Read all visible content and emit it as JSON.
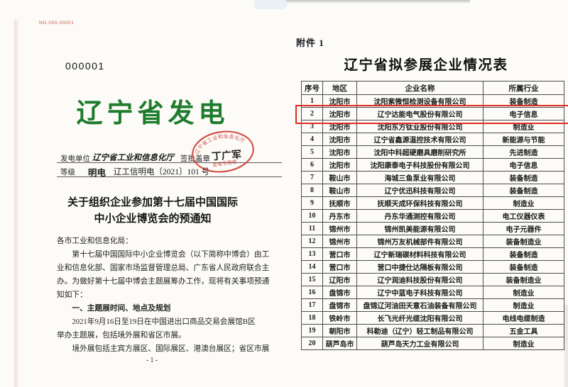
{
  "left_page": {
    "doc_no_red": "NO.000.00001",
    "serial": "000001",
    "big_title": "辽宁省发电",
    "form": {
      "unit_label": "发电单位",
      "unit_value": "辽宁省工业和信息化厅",
      "sign_label": "签批盖章",
      "sign_value": "丁广军",
      "grade_label": "等级",
      "grade_value": "明电",
      "doc_number": "辽工信明电〔2021〕101 号"
    },
    "stamp": {
      "ring_text": "辽宁省工业和信息化厅",
      "bottom_text": "发电专用章",
      "color": "#cc3b30"
    },
    "subject_line1": "关于组织企业参加第十七届中国国际",
    "subject_line2": "中小企业博览会的预通知",
    "body_lines": [
      {
        "text": "各市工业和信息化局：",
        "indent": false,
        "bold": false
      },
      {
        "text": "第十七届中国国际中小企业博览会（以下简称中博会）由工",
        "indent": true,
        "bold": false
      },
      {
        "text": "业和信息化部、国家市场监督管理总局、广东省人民政府联合主",
        "indent": false,
        "bold": false
      },
      {
        "text": "办。为做好第十七届中博会主题展筹办工作，现将有关事项预通",
        "indent": false,
        "bold": false
      },
      {
        "text": "知如下：",
        "indent": false,
        "bold": false
      },
      {
        "text": "一、主题展时间、地点及规划",
        "indent": true,
        "bold": true
      },
      {
        "text": "2021年9月16日至19日在中国进出口商品交易会展馆B区",
        "indent": true,
        "bold": false
      },
      {
        "text": "举办主题展，包括境外展和省区市展。",
        "indent": false,
        "bold": false
      },
      {
        "text": "境外展包括主宾方展区、国际展区、港澳台展区；省区市展",
        "indent": true,
        "bold": false
      }
    ],
    "page_number": "-1-"
  },
  "right_page": {
    "attachment_label": "附件 1",
    "table_title": "辽宁省拟参展企业情况表",
    "columns": [
      "序号",
      "地区",
      "企业名称",
      "所属行业"
    ],
    "rows": [
      [
        "1",
        "沈阳市",
        "沈阳紫微恒检测设备有限公司",
        "装备制造"
      ],
      [
        "2",
        "沈阳市",
        "辽宁达能电气股份有限公司",
        "电子信息"
      ],
      [
        "3",
        "沈阳市",
        "沈阳东方钛业股份有限公司",
        "制造业"
      ],
      [
        "4",
        "沈阳市",
        "辽宁省鑫源温控技术有限公司",
        "新能源与节能"
      ],
      [
        "5",
        "沈阳市",
        "沈阳中科超硬磨具磨削研究所",
        "先进制造"
      ],
      [
        "6",
        "沈阳市",
        "沈阳康泰电子科技股份有限公司",
        "电子信息"
      ],
      [
        "7",
        "鞍山市",
        "海城三鱼泵业有限公司",
        "装备制造"
      ],
      [
        "8",
        "鞍山市",
        "辽宁优迅科技有限公司",
        "装备制造"
      ],
      [
        "9",
        "抚顺市",
        "抚顺天成环保科技有限公司",
        "制造业"
      ],
      [
        "10",
        "丹东市",
        "丹东华通测控有限公司",
        "电工仪器仪表"
      ],
      [
        "11",
        "锦州市",
        "锦州凯美能源有限公司",
        "电子元器件"
      ],
      [
        "12",
        "锦州市",
        "锦州万友机械部件有限公司",
        "装备制造业"
      ],
      [
        "13",
        "营口市",
        "辽宁新瑞碳材料科技有限公司",
        "装备制造"
      ],
      [
        "14",
        "营口市",
        "营口中捷仕达隔板有限公司",
        "装备制造"
      ],
      [
        "15",
        "辽阳市",
        "辽宁润迪科技股份有限公司",
        "装备制造业"
      ],
      [
        "16",
        "盘锦市",
        "辽宁中蓝电子科技有限公司",
        "制造业"
      ],
      [
        "17",
        "盘锦市",
        "盘锦辽河油田天意石油装备有限公司",
        "制造业"
      ],
      [
        "18",
        "铁岭市",
        "长飞光纤光缆沈阳有限公司",
        "电线电缆制造"
      ],
      [
        "19",
        "朝阳市",
        "科勒迪（辽宁）轻工制品有限公司",
        "五金工具"
      ],
      [
        "20",
        "葫芦岛市",
        "葫芦岛天力工业有限公司",
        "制造业"
      ]
    ],
    "highlighted_row": "2",
    "highlight_color": "#df2b20"
  },
  "colors": {
    "title_green": "#1e7c2c",
    "stamp_red": "#cc3b30",
    "doc_no_red": "#c65848",
    "highlight_red": "#df2b20"
  }
}
